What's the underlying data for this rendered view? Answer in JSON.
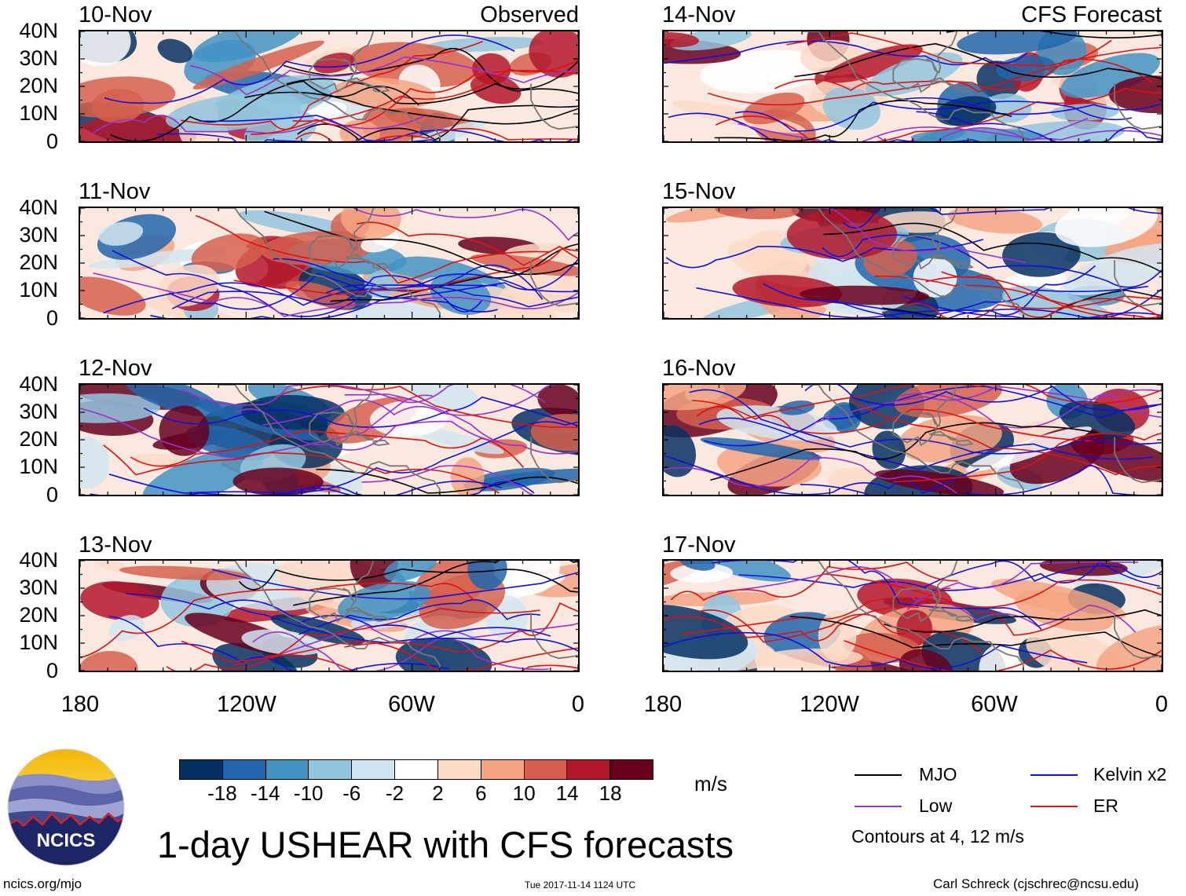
{
  "panels": [
    {
      "date": "10-Nov",
      "tag": "Observed",
      "seed": 11
    },
    {
      "date": "14-Nov",
      "tag": "CFS Forecast",
      "seed": 23
    },
    {
      "date": "11-Nov",
      "tag": "",
      "seed": 37
    },
    {
      "date": "15-Nov",
      "tag": "",
      "seed": 41
    },
    {
      "date": "12-Nov",
      "tag": "",
      "seed": 53
    },
    {
      "date": "16-Nov",
      "tag": "",
      "seed": 67
    },
    {
      "date": "13-Nov",
      "tag": "",
      "seed": 71
    },
    {
      "date": "17-Nov",
      "tag": "",
      "seed": 89
    }
  ],
  "lat_labels": [
    "40N",
    "30N",
    "20N",
    "10N",
    "0"
  ],
  "lon_labels_left": [
    "180",
    "120W",
    "60W",
    "0"
  ],
  "lon_labels_right": [
    "180",
    "120W",
    "60W",
    "0"
  ],
  "colorbar": {
    "labels": [
      "-18",
      "-14",
      "-10",
      "-6",
      "-2",
      "2",
      "6",
      "10",
      "14",
      "18"
    ],
    "colors": [
      "#053061",
      "#2166ac",
      "#4393c3",
      "#92c5de",
      "#d1e5f0",
      "#ffffff",
      "#fddbc7",
      "#f4a582",
      "#d6604d",
      "#b2182b",
      "#67001f"
    ],
    "units": "m/s"
  },
  "legend": {
    "items": [
      {
        "label": "MJO",
        "color": "#000000"
      },
      {
        "label": "Kelvin x2",
        "color": "#1010e0"
      },
      {
        "label": "Low",
        "color": "#9932cc"
      },
      {
        "label": "ER",
        "color": "#e01010"
      }
    ],
    "note": "Contours at 4, 12 m/s"
  },
  "title": "1-day USHEAR with CFS forecasts",
  "logo_text": "NCICS",
  "footer": {
    "left": "ncics.org/mjo",
    "center": "Tue 2017-11-14 1124 UTC",
    "right": "Carl Schreck (cjschrec@ncsu.edu)"
  }
}
